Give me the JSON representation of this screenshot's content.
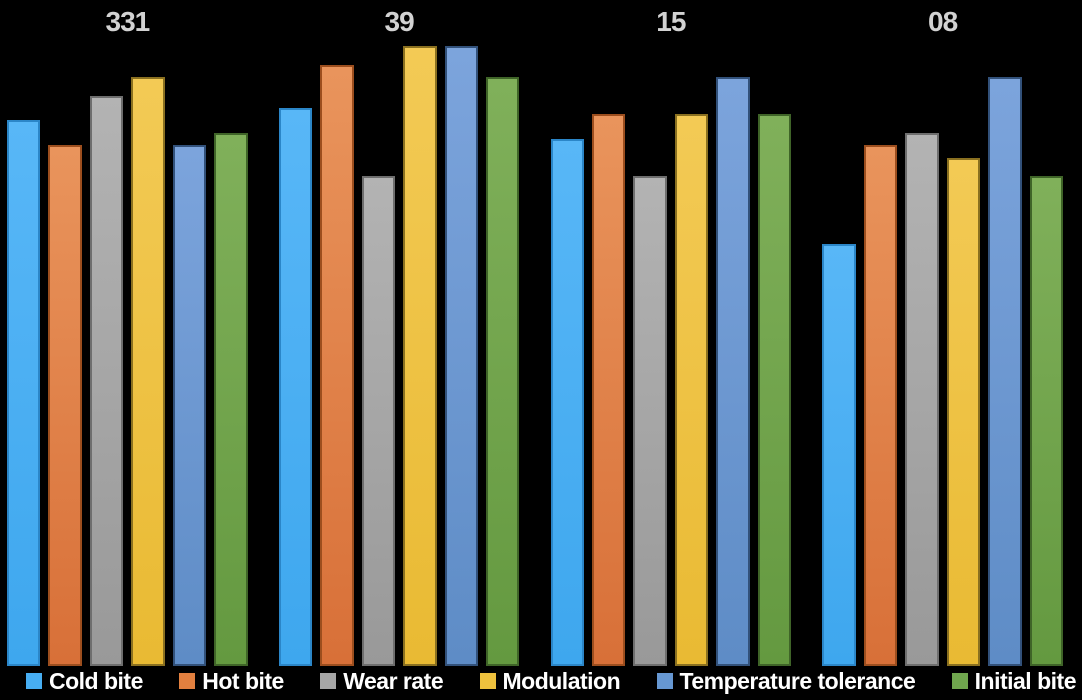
{
  "chart_data": {
    "type": "bar",
    "title": "",
    "xlabel": "",
    "ylabel": "",
    "categories": [
      "331",
      "39",
      "15",
      "08"
    ],
    "series": [
      {
        "name": "Cold bite",
        "color": "#47aef2",
        "gradient": [
          "#58b7f7",
          "#3ea7ee"
        ],
        "border": "#2b86c8",
        "values": [
          8.8,
          9.0,
          8.5,
          6.8
        ]
      },
      {
        "name": "Hot bite",
        "color": "#e2803f",
        "gradient": [
          "#e9945c",
          "#d87038"
        ],
        "border": "#9c4e1e",
        "values": [
          8.4,
          9.7,
          8.9,
          8.4
        ]
      },
      {
        "name": "Wear rate",
        "color": "#a6a6a6",
        "gradient": [
          "#b3b3b3",
          "#999999"
        ],
        "border": "#6e6e6e",
        "values": [
          9.2,
          7.9,
          7.9,
          8.6
        ]
      },
      {
        "name": "Modulation",
        "color": "#eec13d",
        "gradient": [
          "#f3ca55",
          "#e9ba33"
        ],
        "border": "#8a7020",
        "values": [
          9.5,
          10.0,
          8.9,
          8.2
        ]
      },
      {
        "name": "Temperature tolerance",
        "color": "#6697d2",
        "gradient": [
          "#7ca4dc",
          "#5e8cc6"
        ],
        "border": "#32517a",
        "values": [
          8.4,
          10.0,
          9.5,
          9.5
        ]
      },
      {
        "name": "Initial bite",
        "color": "#70a64e",
        "gradient": [
          "#80b05a",
          "#649940"
        ],
        "border": "#3f6428",
        "values": [
          8.6,
          9.5,
          8.9,
          7.9
        ]
      }
    ],
    "ylim": [
      0,
      10
    ],
    "grid": false,
    "axes_visible": false,
    "legend_position": "bottom",
    "background": "#000000",
    "category_label_color": "#d2d2d2",
    "legend_text_color": "#ffffff"
  }
}
